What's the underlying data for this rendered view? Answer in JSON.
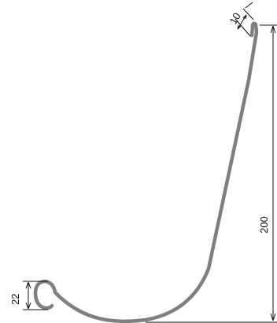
{
  "dimensions": {
    "lip_width": "10",
    "total_height": "200",
    "curl_height": "22"
  },
  "colors": {
    "profile": "#7f7f7f",
    "dimension_lines": "#111111",
    "background": "#ffffff"
  }
}
